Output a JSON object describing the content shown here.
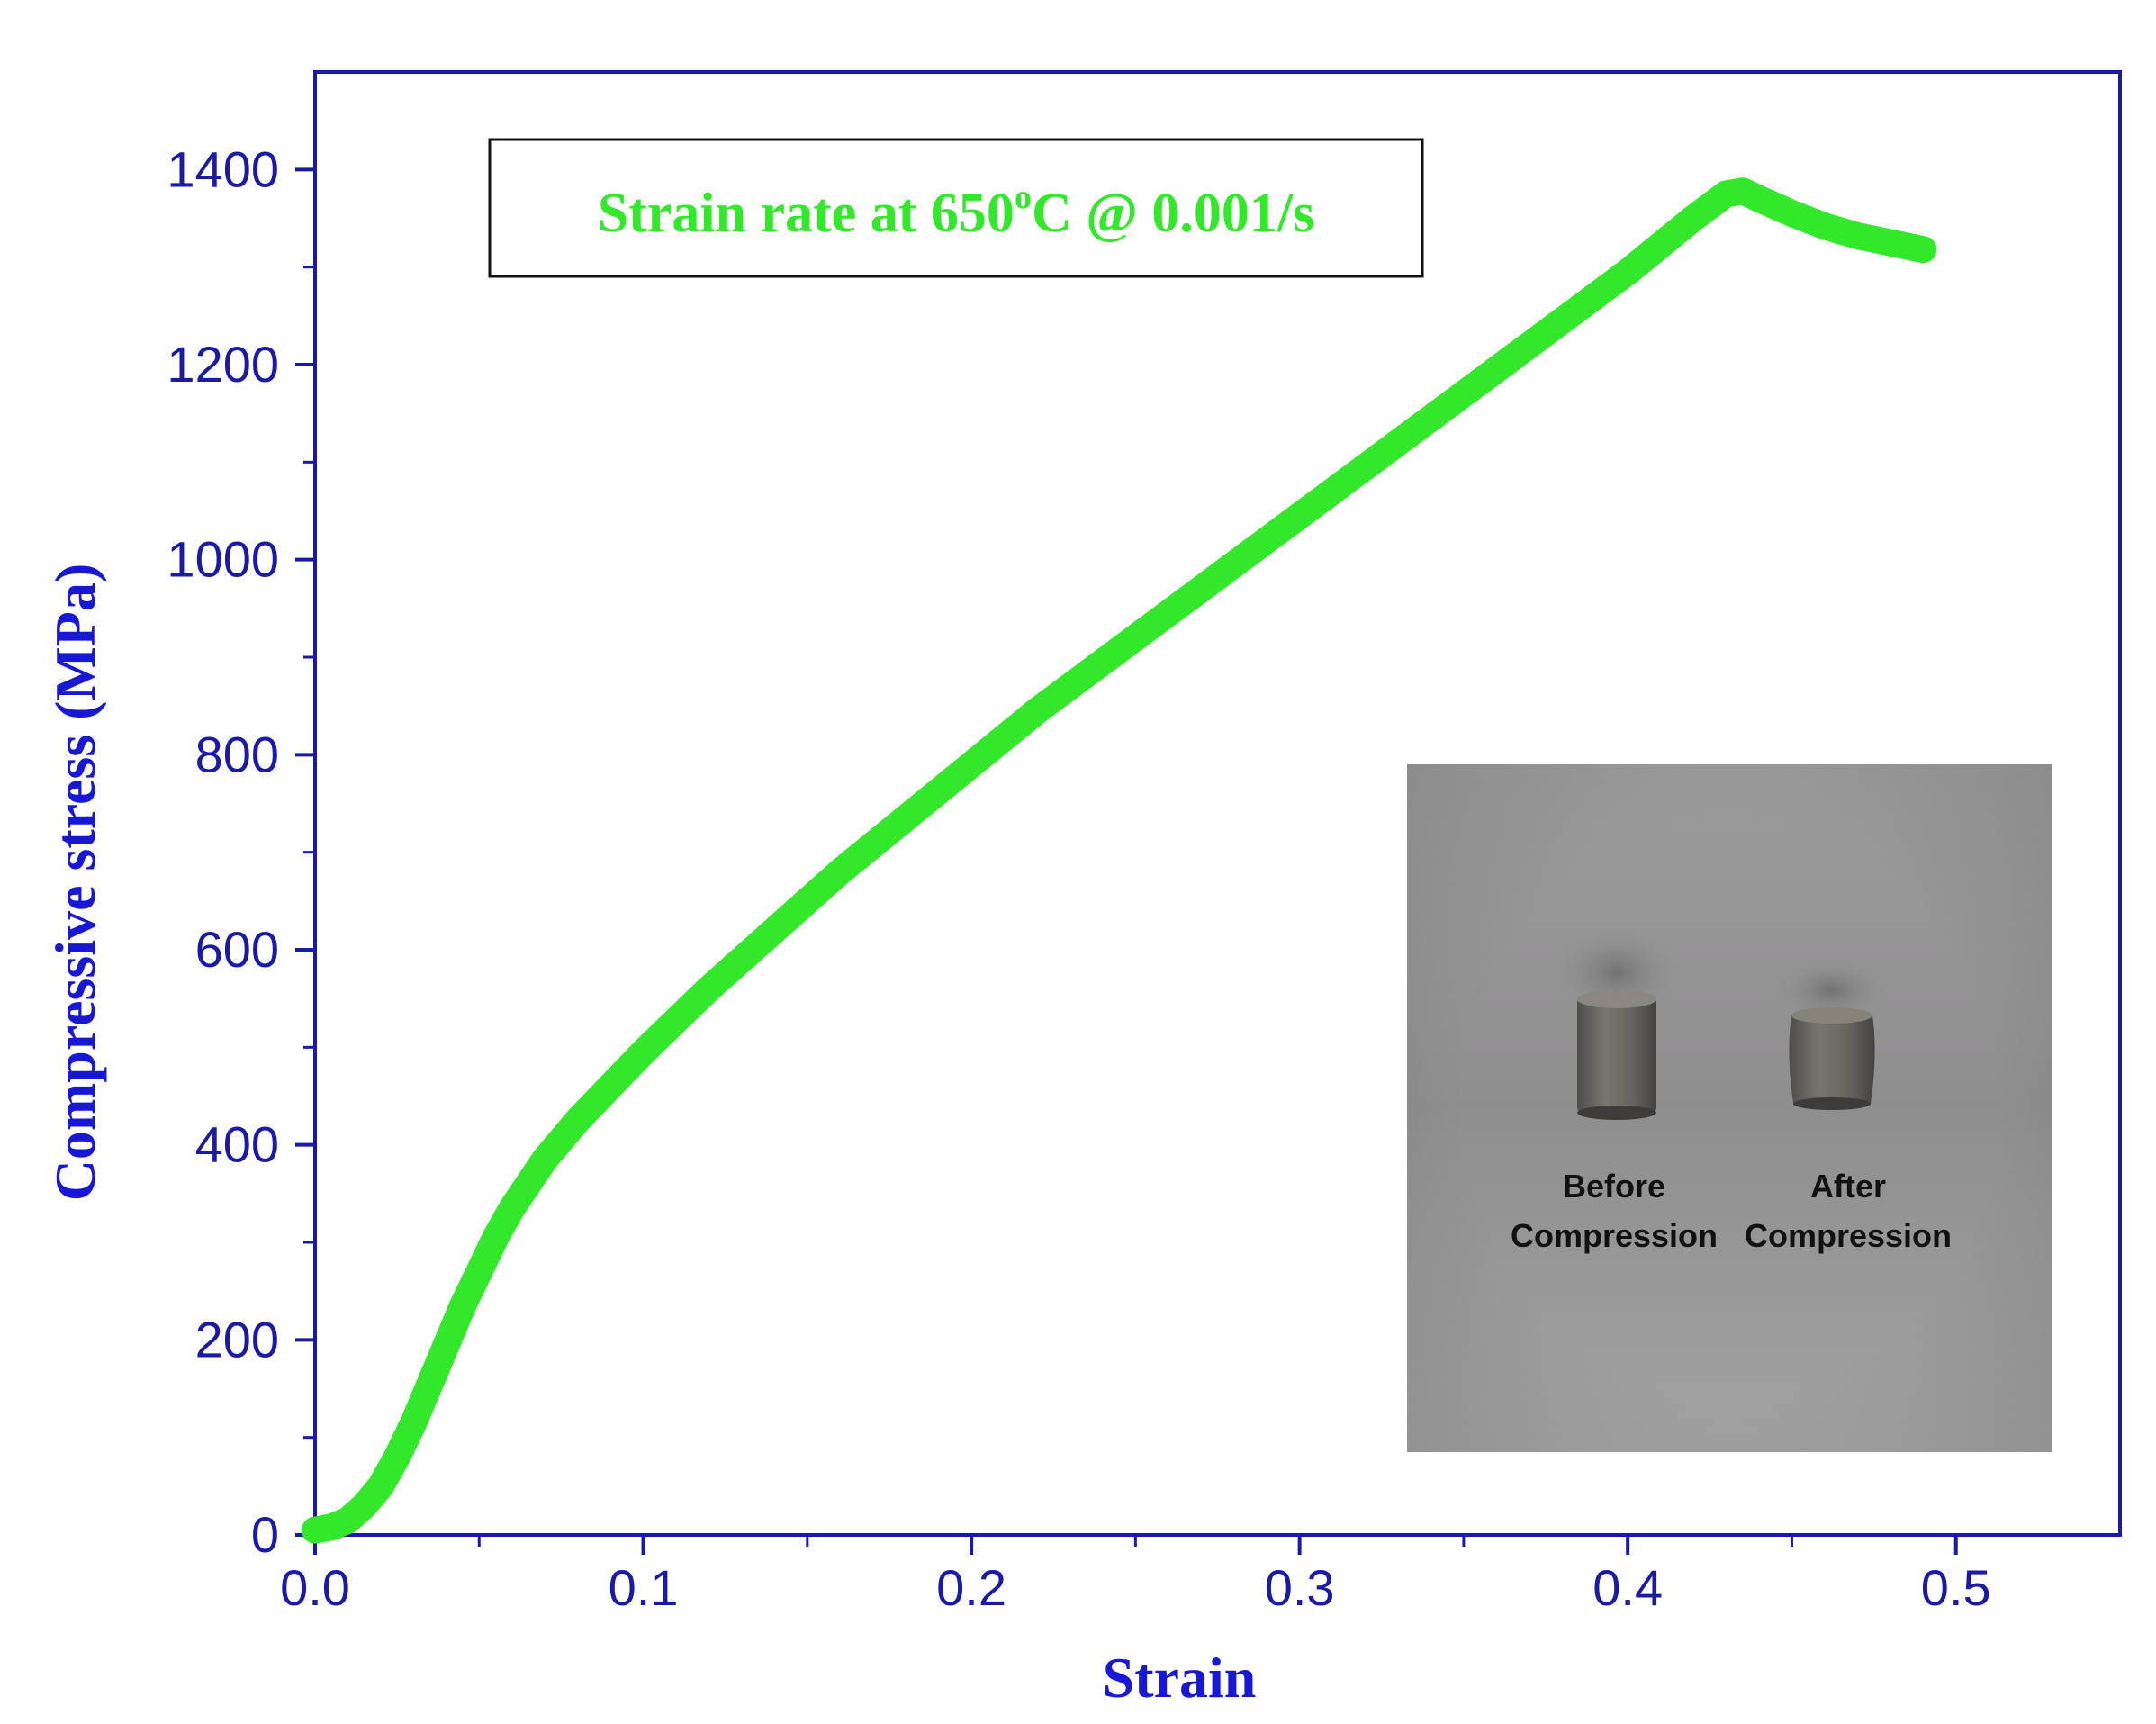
{
  "chart_data": {
    "type": "line",
    "title": "",
    "xlabel": "Strain",
    "ylabel": "Compressive stress (MPa)",
    "xlim": [
      0.0,
      0.55
    ],
    "ylim": [
      0,
      1500
    ],
    "x_ticks": [
      0.0,
      0.1,
      0.2,
      0.3,
      0.4,
      0.5
    ],
    "x_tick_labels": [
      "0.0",
      "0.1",
      "0.2",
      "0.3",
      "0.4",
      "0.5"
    ],
    "y_ticks": [
      0,
      200,
      400,
      600,
      800,
      1000,
      1200,
      1400
    ],
    "y_tick_labels": [
      "0",
      "200",
      "400",
      "600",
      "800",
      "1000",
      "1200",
      "1400"
    ],
    "grid": false,
    "annotation": {
      "text_main": "Strain rate at 650",
      "text_super": "o",
      "text_tail": "C @ 0.001/s"
    },
    "series": [
      {
        "x": [
          0.0,
          0.005,
          0.01,
          0.015,
          0.02,
          0.025,
          0.03,
          0.035,
          0.04,
          0.045,
          0.05,
          0.055,
          0.06,
          0.07,
          0.08,
          0.09,
          0.1,
          0.12,
          0.14,
          0.16,
          0.18,
          0.2,
          0.22,
          0.24,
          0.26,
          0.28,
          0.3,
          0.32,
          0.34,
          0.36,
          0.38,
          0.4,
          0.42,
          0.43,
          0.435,
          0.44,
          0.45,
          0.46,
          0.47,
          0.48,
          0.49
        ],
        "y": [
          5,
          8,
          15,
          30,
          50,
          80,
          115,
          155,
          195,
          235,
          270,
          305,
          335,
          385,
          425,
          460,
          495,
          560,
          620,
          680,
          735,
          790,
          845,
          895,
          945,
          995,
          1045,
          1095,
          1145,
          1195,
          1245,
          1295,
          1350,
          1375,
          1378,
          1370,
          1355,
          1342,
          1332,
          1325,
          1318
        ]
      }
    ],
    "colors": {
      "axis": "#1a1aa6",
      "axis_label": "#1818d4",
      "series": "#33e82b",
      "annotation_text": "#33e82b"
    },
    "inset_photo": {
      "label_before_line1": "Before",
      "label_before_line2": "Compression",
      "label_after_line1": "After",
      "label_after_line2": "Compression"
    }
  }
}
